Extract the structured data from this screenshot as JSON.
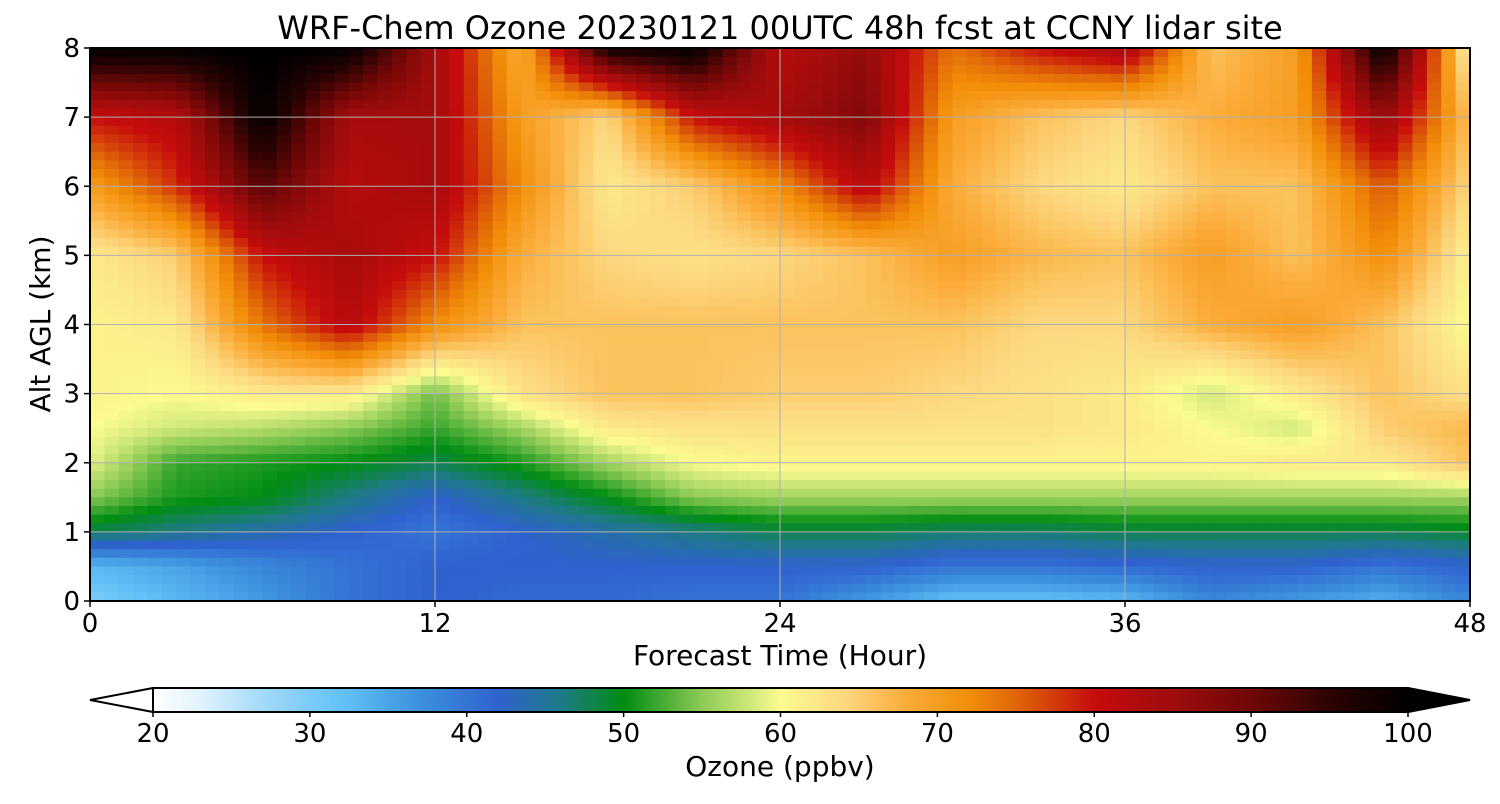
{
  "chart_data": {
    "type": "heatmap",
    "title": "WRF-Chem Ozone  20230121 00UTC 48h fcst at CCNY lidar site",
    "xlabel": "Forecast Time (Hour)",
    "ylabel": "Alt AGL (km)",
    "xlim": [
      0,
      48
    ],
    "ylim": [
      0,
      8
    ],
    "x_ticks": [
      0,
      12,
      24,
      36,
      48
    ],
    "y_ticks": [
      0,
      1,
      2,
      3,
      4,
      5,
      6,
      7,
      8
    ],
    "grid": true,
    "x": [
      0,
      3,
      6,
      9,
      12,
      15,
      18,
      21,
      24,
      27,
      30,
      33,
      36,
      39,
      42,
      45,
      48
    ],
    "y": [
      0,
      0.5,
      1,
      1.5,
      2,
      2.5,
      3,
      4,
      5,
      6,
      7,
      8
    ],
    "z_units": "ppbv",
    "values": [
      [
        30,
        33,
        36,
        40,
        42,
        41,
        41,
        40,
        40,
        36,
        32,
        32,
        33,
        38,
        36,
        34,
        38
      ],
      [
        33,
        35,
        38,
        40,
        42,
        42,
        42,
        42,
        42,
        42,
        40,
        40,
        41,
        42,
        42,
        40,
        42
      ],
      [
        48,
        46,
        44,
        42,
        40,
        42,
        44,
        46,
        48,
        48,
        47,
        47,
        48,
        48,
        48,
        48,
        49
      ],
      [
        55,
        51,
        50,
        46,
        42,
        46,
        50,
        55,
        56,
        56,
        56,
        56,
        56,
        56,
        56,
        56,
        56
      ],
      [
        59,
        52,
        51,
        50,
        48,
        51,
        56,
        60,
        61,
        61,
        61,
        61,
        61,
        61,
        62,
        62,
        66
      ],
      [
        60,
        58,
        57,
        55,
        52,
        56,
        62,
        63,
        63,
        63,
        63,
        63,
        62,
        60,
        58,
        65,
        67
      ],
      [
        61,
        60,
        62,
        62,
        54,
        63,
        66,
        66,
        65,
        65,
        64,
        63,
        62,
        58,
        62,
        66,
        63
      ],
      [
        61,
        62,
        74,
        82,
        72,
        66,
        66,
        66,
        66,
        66,
        66,
        64,
        64,
        68,
        70,
        66,
        60
      ],
      [
        62,
        65,
        80,
        84,
        80,
        68,
        64,
        63,
        64,
        66,
        70,
        67,
        66,
        70,
        66,
        72,
        61
      ],
      [
        70,
        78,
        92,
        82,
        84,
        72,
        62,
        65,
        72,
        82,
        68,
        64,
        62,
        66,
        66,
        76,
        64
      ],
      [
        80,
        82,
        100,
        84,
        84,
        70,
        64,
        80,
        84,
        88,
        70,
        66,
        64,
        68,
        70,
        86,
        66
      ],
      [
        100,
        100,
        100,
        100,
        84,
        68,
        98,
        100,
        82,
        86,
        74,
        80,
        84,
        66,
        70,
        100,
        60
      ]
    ],
    "colorbar": {
      "label": "Ozone  (ppbv)",
      "min": 20,
      "max": 100,
      "ticks": [
        "20",
        "30",
        "40",
        "50",
        "60",
        "70",
        "80",
        "90",
        "100"
      ],
      "extend": "both",
      "stops": [
        [
          20,
          "#ffffff"
        ],
        [
          23,
          "#e2f2fc"
        ],
        [
          27,
          "#a2daf8"
        ],
        [
          32,
          "#62c2f6"
        ],
        [
          37,
          "#3c90dd"
        ],
        [
          42,
          "#2f62cf"
        ],
        [
          46,
          "#1e7a86"
        ],
        [
          50,
          "#008d12"
        ],
        [
          55,
          "#8cca55"
        ],
        [
          60,
          "#fbfb90"
        ],
        [
          64,
          "#fcd880"
        ],
        [
          68,
          "#fbac3a"
        ],
        [
          72,
          "#f28e08"
        ],
        [
          75,
          "#e06608"
        ],
        [
          80,
          "#c60c0c"
        ],
        [
          85,
          "#9e0c0c"
        ],
        [
          90,
          "#6f0707"
        ],
        [
          95,
          "#2c0303"
        ],
        [
          100,
          "#000000"
        ]
      ]
    }
  }
}
